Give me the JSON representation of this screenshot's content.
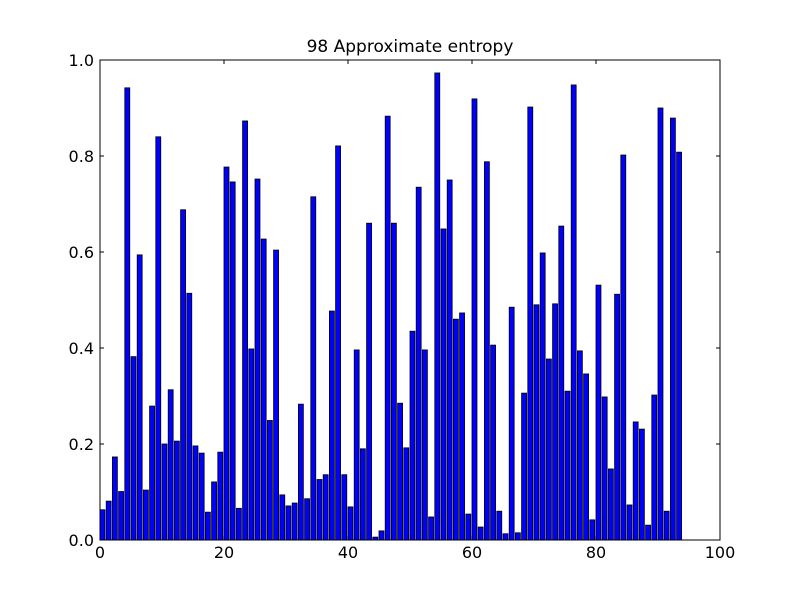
{
  "chart_data": {
    "type": "bar",
    "title": "98 Approximate entropy",
    "xlabel": "",
    "ylabel": "",
    "xlim": [
      0,
      100
    ],
    "ylim": [
      0.0,
      1.0
    ],
    "xticks": [
      0,
      20,
      40,
      60,
      80,
      100
    ],
    "xtick_labels": [
      "0",
      "20",
      "40",
      "60",
      "80",
      "100"
    ],
    "yticks": [
      0.0,
      0.2,
      0.4,
      0.6,
      0.8,
      1.0
    ],
    "ytick_labels": [
      "0.0",
      "0.2",
      "0.4",
      "0.6",
      "0.8",
      "1.0"
    ],
    "grid": false,
    "legend": "none",
    "bar_width": 0.8,
    "bar_color": "#0000ff",
    "edge_color": "#000000",
    "x": [
      0,
      1,
      2,
      3,
      4,
      5,
      6,
      7,
      8,
      9,
      10,
      11,
      12,
      13,
      14,
      15,
      16,
      17,
      18,
      19,
      20,
      21,
      22,
      23,
      24,
      25,
      26,
      27,
      28,
      29,
      30,
      31,
      32,
      33,
      34,
      35,
      36,
      37,
      38,
      39,
      40,
      41,
      42,
      43,
      44,
      45,
      46,
      47,
      48,
      49,
      50,
      51,
      52,
      53,
      54,
      55,
      56,
      57,
      58,
      59,
      60,
      61,
      62,
      63,
      64,
      65,
      66,
      67,
      68,
      69,
      70,
      71,
      72,
      73,
      74,
      75,
      76,
      77,
      78,
      79,
      80,
      81,
      82,
      83,
      84,
      85,
      86,
      87,
      88,
      89,
      90,
      91,
      92,
      93
    ],
    "values": [
      0.063,
      0.081,
      0.173,
      0.101,
      0.942,
      0.382,
      0.594,
      0.104,
      0.279,
      0.84,
      0.2,
      0.313,
      0.206,
      0.688,
      0.514,
      0.196,
      0.181,
      0.058,
      0.121,
      0.183,
      0.777,
      0.746,
      0.066,
      0.873,
      0.398,
      0.752,
      0.627,
      0.249,
      0.604,
      0.094,
      0.071,
      0.077,
      0.283,
      0.086,
      0.715,
      0.126,
      0.136,
      0.477,
      0.821,
      0.136,
      0.069,
      0.396,
      0.19,
      0.66,
      0.006,
      0.019,
      0.883,
      0.66,
      0.285,
      0.192,
      0.435,
      0.735,
      0.396,
      0.048,
      0.973,
      0.648,
      0.75,
      0.46,
      0.473,
      0.054,
      0.919,
      0.027,
      0.788,
      0.406,
      0.06,
      0.013,
      0.485,
      0.015,
      0.306,
      0.902,
      0.49,
      0.598,
      0.377,
      0.492,
      0.654,
      0.31,
      0.948,
      0.394,
      0.346,
      0.042,
      0.531,
      0.298,
      0.148,
      0.512,
      0.802,
      0.073,
      0.246,
      0.231,
      0.031,
      0.302,
      0.9,
      0.06,
      0.879,
      0.808
    ]
  }
}
